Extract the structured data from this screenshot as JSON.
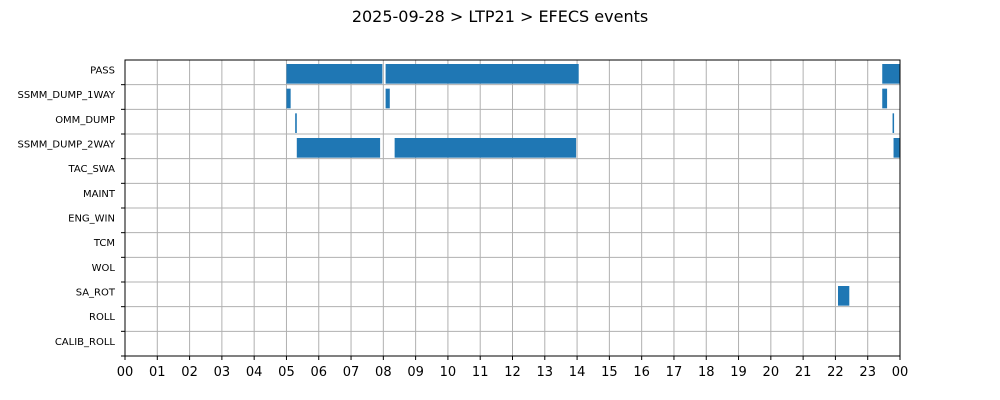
{
  "chart_data": {
    "type": "bar",
    "orientation": "horizontal-timeline",
    "title": "2025-09-28 > LTP21 > EFECS events",
    "xlabel": "",
    "ylabel": "",
    "xlim": [
      0,
      24
    ],
    "x_tick_labels": [
      "00",
      "01",
      "02",
      "03",
      "04",
      "05",
      "06",
      "07",
      "08",
      "09",
      "10",
      "11",
      "12",
      "13",
      "14",
      "15",
      "16",
      "17",
      "18",
      "19",
      "20",
      "21",
      "22",
      "23",
      "00"
    ],
    "categories": [
      "PASS",
      "SSMM_DUMP_1WAY",
      "OMM_DUMP",
      "SSMM_DUMP_2WAY",
      "TAC_SWA",
      "MAINT",
      "ENG_WIN",
      "TCM",
      "WOL",
      "SA_ROT",
      "ROLL",
      "CALIB_ROLL"
    ],
    "grid": true,
    "bar_color": "#1f77b4",
    "events": [
      {
        "category": "PASS",
        "start": 5.0,
        "end": 7.97
      },
      {
        "category": "PASS",
        "start": 8.07,
        "end": 14.05
      },
      {
        "category": "PASS",
        "start": 23.45,
        "end": 24.0
      },
      {
        "category": "SSMM_DUMP_1WAY",
        "start": 5.0,
        "end": 5.13
      },
      {
        "category": "SSMM_DUMP_1WAY",
        "start": 8.07,
        "end": 8.2
      },
      {
        "category": "SSMM_DUMP_1WAY",
        "start": 23.45,
        "end": 23.6
      },
      {
        "category": "OMM_DUMP",
        "start": 5.27,
        "end": 5.32
      },
      {
        "category": "OMM_DUMP",
        "start": 23.77,
        "end": 23.8
      },
      {
        "category": "SSMM_DUMP_2WAY",
        "start": 5.32,
        "end": 7.9
      },
      {
        "category": "SSMM_DUMP_2WAY",
        "start": 8.35,
        "end": 13.97
      },
      {
        "category": "SSMM_DUMP_2WAY",
        "start": 23.8,
        "end": 24.0
      },
      {
        "category": "SA_ROT",
        "start": 22.08,
        "end": 22.43
      }
    ]
  }
}
